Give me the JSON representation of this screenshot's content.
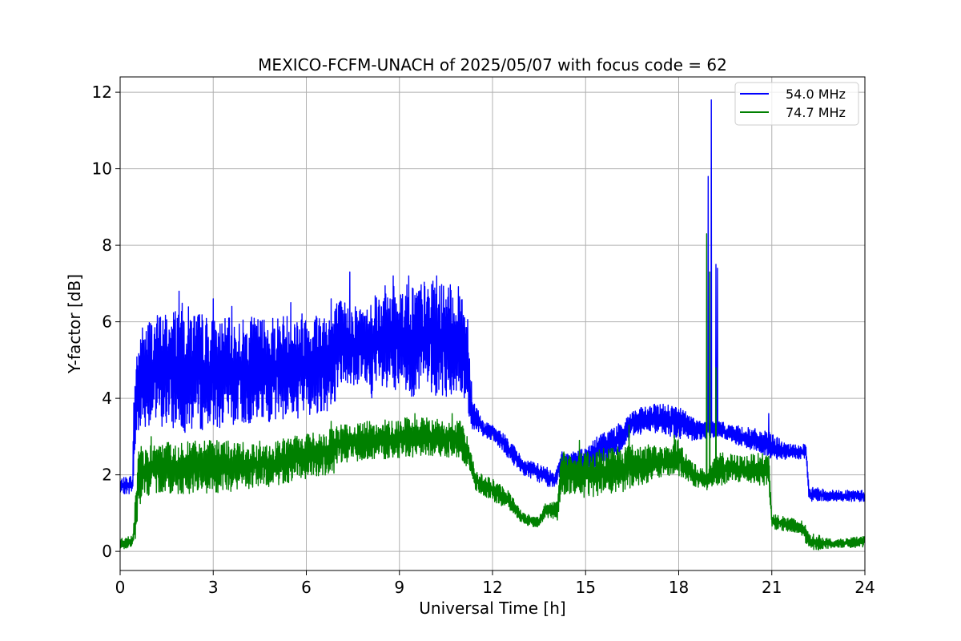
{
  "chart_data": {
    "type": "line",
    "title": "MEXICO-FCFM-UNACH of 2025/05/07 with focus code = 62",
    "xlabel": "Universal Time [h]",
    "ylabel": "Y-factor [dB]",
    "xlim": [
      0,
      24
    ],
    "ylim": [
      -0.5,
      12.4
    ],
    "xticks": [
      "0",
      "3",
      "6",
      "9",
      "12",
      "15",
      "18",
      "21",
      "24"
    ],
    "yticks": [
      "0",
      "2",
      "4",
      "6",
      "8",
      "10",
      "12"
    ],
    "grid": true,
    "legend_position": "top-right",
    "series": [
      {
        "name": "54.0 MHz",
        "color": "#0000ff",
        "band": [
          [
            0.0,
            1.5,
            1.9
          ],
          [
            0.4,
            1.5,
            2.0
          ],
          [
            0.45,
            1.9,
            4.5
          ],
          [
            0.55,
            3.0,
            5.5
          ],
          [
            0.7,
            3.3,
            5.9
          ],
          [
            1.0,
            3.2,
            6.2
          ],
          [
            1.5,
            3.2,
            6.3
          ],
          [
            2.0,
            3.1,
            6.5
          ],
          [
            3.0,
            3.2,
            6.1
          ],
          [
            4.0,
            3.3,
            6.1
          ],
          [
            5.0,
            3.4,
            6.2
          ],
          [
            6.0,
            3.5,
            6.3
          ],
          [
            6.9,
            3.7,
            6.4
          ],
          [
            7.0,
            4.3,
            6.6
          ],
          [
            8.0,
            4.3,
            6.4
          ],
          [
            8.1,
            4.0,
            6.9
          ],
          [
            9.0,
            4.0,
            7.0
          ],
          [
            10.0,
            4.1,
            7.1
          ],
          [
            11.0,
            3.9,
            6.9
          ],
          [
            11.2,
            3.6,
            6.4
          ],
          [
            11.35,
            3.1,
            4.1
          ],
          [
            11.7,
            3.0,
            3.4
          ],
          [
            12.0,
            2.9,
            3.3
          ],
          [
            12.5,
            2.4,
            3.0
          ],
          [
            13.0,
            2.0,
            2.4
          ],
          [
            13.5,
            1.8,
            2.3
          ],
          [
            14.0,
            1.6,
            2.1
          ],
          [
            14.2,
            2.0,
            2.6
          ],
          [
            15.0,
            2.0,
            2.7
          ],
          [
            15.5,
            2.3,
            3.1
          ],
          [
            16.0,
            2.5,
            3.3
          ],
          [
            16.5,
            3.0,
            3.7
          ],
          [
            17.0,
            3.1,
            3.8
          ],
          [
            17.5,
            3.1,
            3.9
          ],
          [
            18.0,
            2.9,
            3.8
          ],
          [
            18.5,
            2.9,
            3.5
          ],
          [
            18.8,
            2.9,
            3.4
          ],
          [
            19.3,
            3.0,
            3.4
          ],
          [
            19.8,
            2.8,
            3.3
          ],
          [
            20.5,
            2.6,
            3.2
          ],
          [
            21.0,
            2.4,
            3.1
          ],
          [
            21.5,
            2.4,
            2.8
          ],
          [
            22.1,
            2.4,
            2.8
          ],
          [
            22.2,
            1.3,
            1.7
          ],
          [
            23.0,
            1.3,
            1.6
          ],
          [
            24.0,
            1.3,
            1.6
          ]
        ],
        "spikes": [
          [
            1.9,
            6.8
          ],
          [
            3.0,
            6.6
          ],
          [
            3.6,
            6.4
          ],
          [
            5.5,
            6.5
          ],
          [
            6.8,
            6.6
          ],
          [
            7.4,
            7.3
          ],
          [
            8.8,
            7.2
          ],
          [
            9.3,
            7.2
          ],
          [
            10.2,
            7.2
          ],
          [
            15.3,
            2.9
          ],
          [
            16.1,
            3.3
          ],
          [
            18.95,
            9.8
          ],
          [
            19.05,
            11.8
          ],
          [
            19.2,
            7.5
          ],
          [
            19.25,
            7.4
          ],
          [
            20.9,
            3.6
          ]
        ]
      },
      {
        "name": "74.7 MHz",
        "color": "#008000",
        "band": [
          [
            0.0,
            0.05,
            0.35
          ],
          [
            0.4,
            0.1,
            0.4
          ],
          [
            0.5,
            0.3,
            1.6
          ],
          [
            0.6,
            1.2,
            2.8
          ],
          [
            1.0,
            1.5,
            2.8
          ],
          [
            2.0,
            1.5,
            2.9
          ],
          [
            3.0,
            1.5,
            2.9
          ],
          [
            4.0,
            1.6,
            2.9
          ],
          [
            5.0,
            1.7,
            2.9
          ],
          [
            6.0,
            1.9,
            3.1
          ],
          [
            6.9,
            2.0,
            3.2
          ],
          [
            7.0,
            2.3,
            3.3
          ],
          [
            8.0,
            2.4,
            3.4
          ],
          [
            9.0,
            2.4,
            3.5
          ],
          [
            10.0,
            2.5,
            3.5
          ],
          [
            11.0,
            2.4,
            3.4
          ],
          [
            11.3,
            2.0,
            2.8
          ],
          [
            11.45,
            1.6,
            2.1
          ],
          [
            12.0,
            1.3,
            1.9
          ],
          [
            12.5,
            1.1,
            1.6
          ],
          [
            13.0,
            0.7,
            1.0
          ],
          [
            13.5,
            0.6,
            0.9
          ],
          [
            13.7,
            0.9,
            1.3
          ],
          [
            14.1,
            0.8,
            1.3
          ],
          [
            14.2,
            1.5,
            2.6
          ],
          [
            15.0,
            1.4,
            2.6
          ],
          [
            16.0,
            1.5,
            2.8
          ],
          [
            17.0,
            1.8,
            2.8
          ],
          [
            17.8,
            2.0,
            2.7
          ],
          [
            17.85,
            2.0,
            3.1
          ],
          [
            18.5,
            1.7,
            2.3
          ],
          [
            18.9,
            1.6,
            2.1
          ],
          [
            19.3,
            1.7,
            2.6
          ],
          [
            20.0,
            1.8,
            2.5
          ],
          [
            20.9,
            1.7,
            2.6
          ],
          [
            21.0,
            0.6,
            1.0
          ],
          [
            21.5,
            0.5,
            0.9
          ],
          [
            22.0,
            0.4,
            0.8
          ],
          [
            22.2,
            0.0,
            0.5
          ],
          [
            23.0,
            0.1,
            0.3
          ],
          [
            24.0,
            0.1,
            0.4
          ]
        ],
        "spikes": [
          [
            1.0,
            3.0
          ],
          [
            6.8,
            3.4
          ],
          [
            9.5,
            3.6
          ],
          [
            10.7,
            3.6
          ],
          [
            14.8,
            2.9
          ],
          [
            16.4,
            3.3
          ],
          [
            18.9,
            8.3
          ],
          [
            19.0,
            7.3
          ],
          [
            19.2,
            4.8
          ]
        ]
      }
    ]
  }
}
